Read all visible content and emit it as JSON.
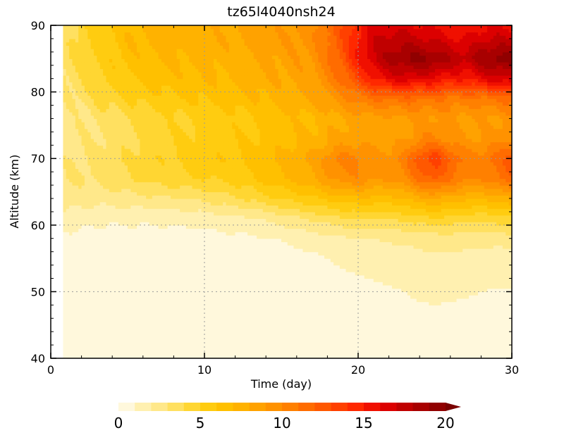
{
  "chart_data": {
    "type": "heatmap",
    "title": "tz65l4040nsh24",
    "xlabel": "Time (day)",
    "ylabel": "Altitude (km)",
    "xlim": [
      0,
      30
    ],
    "ylim": [
      40,
      90
    ],
    "x_ticks": [
      0,
      10,
      20,
      30
    ],
    "y_ticks": [
      40,
      50,
      60,
      70,
      80,
      90
    ],
    "grid": "dotted",
    "data_start_day": 0.8,
    "colorbar": {
      "min": 0,
      "max": 20,
      "step": 1,
      "extend": "max",
      "ticks": [
        0,
        5,
        10,
        15,
        20
      ],
      "colors": [
        "#fff8dc",
        "#fff0b0",
        "#ffe88a",
        "#ffe060",
        "#ffd632",
        "#ffcc10",
        "#ffc000",
        "#ffb200",
        "#ffa200",
        "#ff9200",
        "#ff8000",
        "#ff6c00",
        "#ff5800",
        "#ff4000",
        "#ff2800",
        "#f01000",
        "#dc0000",
        "#c00000",
        "#a80000",
        "#900000",
        "#7a0000"
      ]
    },
    "times": [
      1,
      3,
      5,
      7,
      9,
      11,
      13,
      15,
      17,
      18,
      19,
      20,
      21,
      22,
      23,
      24,
      25,
      26,
      27,
      28,
      29,
      30
    ],
    "altitudes": [
      40,
      45,
      50,
      55,
      58,
      61,
      64,
      67,
      70,
      73,
      76,
      79,
      82,
      85,
      88,
      90
    ],
    "values": [
      [
        0.5,
        0.5,
        0.5,
        0.5,
        0.5,
        0.5,
        0.5,
        0.5,
        0.5,
        0.5,
        0.5,
        0.5,
        0.5,
        0.5,
        0.5,
        0.5,
        0.5,
        0.5,
        0.5,
        0.5,
        0.5,
        0.5
      ],
      [
        0.5,
        0.5,
        0.5,
        0.5,
        0.5,
        0.5,
        0.5,
        0.5,
        0.5,
        0.5,
        0.5,
        0.5,
        0.5,
        0.5,
        0.5,
        0.5,
        0.5,
        0.5,
        0.5,
        0.5,
        0.5,
        0.5
      ],
      [
        0.5,
        0.5,
        0.5,
        0.5,
        0.5,
        0.5,
        0.5,
        0.5,
        0.5,
        0.5,
        0.6,
        0.7,
        0.8,
        0.9,
        1.0,
        1.2,
        1.3,
        1.2,
        1.1,
        1.0,
        0.9,
        0.9
      ],
      [
        0.5,
        0.5,
        0.5,
        0.5,
        0.5,
        0.5,
        0.5,
        0.6,
        0.8,
        1.0,
        1.2,
        1.3,
        1.4,
        1.5,
        1.6,
        1.7,
        1.8,
        1.8,
        1.7,
        1.6,
        1.6,
        1.6
      ],
      [
        0.8,
        0.6,
        0.6,
        0.6,
        0.6,
        0.7,
        0.8,
        1.1,
        1.4,
        1.6,
        1.8,
        1.9,
        2.0,
        2.1,
        2.2,
        2.3,
        2.4,
        2.5,
        2.4,
        2.3,
        2.3,
        2.4
      ],
      [
        1.5,
        1.2,
        1.2,
        1.2,
        1.3,
        1.5,
        1.9,
        2.5,
        3.2,
        3.5,
        3.8,
        4.0,
        4.0,
        4.1,
        4.3,
        4.6,
        4.8,
        4.6,
        4.4,
        4.3,
        4.5,
        4.8
      ],
      [
        2.5,
        2.4,
        2.6,
        2.8,
        3.0,
        3.5,
        4.2,
        5.0,
        5.8,
        6.2,
        6.5,
        6.8,
        6.6,
        6.6,
        6.9,
        7.6,
        8.0,
        7.6,
        7.2,
        7.0,
        7.4,
        8.0
      ],
      [
        3.0,
        3.2,
        3.8,
        4.5,
        4.8,
        5.2,
        5.8,
        6.8,
        7.8,
        8.8,
        9.6,
        9.8,
        9.2,
        9.0,
        9.8,
        11.5,
        12.2,
        11.0,
        10.2,
        10.0,
        10.8,
        11.8
      ],
      [
        2.8,
        3.2,
        4.0,
        4.8,
        5.4,
        5.8,
        6.2,
        7.2,
        8.2,
        9.5,
        10.4,
        10.2,
        9.6,
        9.4,
        10.5,
        12.8,
        13.8,
        12.0,
        10.8,
        10.5,
        11.5,
        12.5
      ],
      [
        2.6,
        3.0,
        3.8,
        4.6,
        5.2,
        5.6,
        6.0,
        6.6,
        7.2,
        7.8,
        8.4,
        8.6,
        8.4,
        8.4,
        8.8,
        9.8,
        10.2,
        9.6,
        9.0,
        9.0,
        9.4,
        10.0
      ],
      [
        2.4,
        3.2,
        4.0,
        4.6,
        5.0,
        5.4,
        5.9,
        6.5,
        7.0,
        7.5,
        8.0,
        8.4,
        8.5,
        8.6,
        8.8,
        9.0,
        9.2,
        9.0,
        8.8,
        8.8,
        9.0,
        9.4
      ],
      [
        2.8,
        4.0,
        5.0,
        5.6,
        6.0,
        6.3,
        6.8,
        7.4,
        8.0,
        8.8,
        9.6,
        10.5,
        11.0,
        11.2,
        11.3,
        11.2,
        11.0,
        10.8,
        10.7,
        10.8,
        11.0,
        11.5
      ],
      [
        3.2,
        4.8,
        6.0,
        6.5,
        6.8,
        7.0,
        7.4,
        8.0,
        8.8,
        10.0,
        11.4,
        13.2,
        15.0,
        16.0,
        16.5,
        16.2,
        15.8,
        15.2,
        15.0,
        15.8,
        16.5,
        16.8
      ],
      [
        3.5,
        5.2,
        6.5,
        7.0,
        7.2,
        7.4,
        7.8,
        8.4,
        9.2,
        10.8,
        12.5,
        15.0,
        17.0,
        18.2,
        19.0,
        19.4,
        19.0,
        17.8,
        17.5,
        18.8,
        19.6,
        19.5
      ],
      [
        3.6,
        5.4,
        6.8,
        7.4,
        7.6,
        7.8,
        8.2,
        8.8,
        9.6,
        11.2,
        13.0,
        15.2,
        16.8,
        17.4,
        17.6,
        17.2,
        16.8,
        16.2,
        16.0,
        16.8,
        17.2,
        17.0
      ],
      [
        3.6,
        5.4,
        6.8,
        7.4,
        7.6,
        7.8,
        8.2,
        8.8,
        9.6,
        11.0,
        12.8,
        14.8,
        16.0,
        16.4,
        16.4,
        16.0,
        15.6,
        15.2,
        15.0,
        15.6,
        16.0,
        15.8
      ]
    ]
  }
}
